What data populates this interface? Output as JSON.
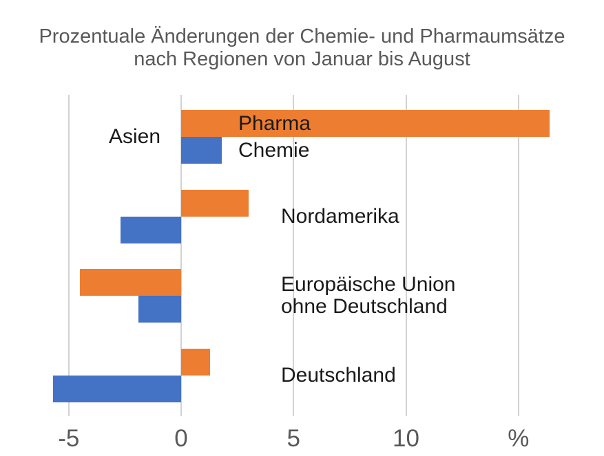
{
  "chart": {
    "title_lines": [
      "Prozentuale Änderungen der Chemie- und Pharmaumsätze",
      "nach Regionen von Januar bis August"
    ]
  },
  "chart_data": {
    "type": "bar",
    "orientation": "horizontal",
    "title": "Prozentuale Änderungen der Chemie- und Pharmaumsätze nach Regionen von Januar bis August",
    "xlabel": "",
    "ylabel": "",
    "unit": "%",
    "xlim": [
      -7,
      18
    ],
    "grid": "vertical",
    "legend_position": "inside-first-group",
    "categories": [
      "Asien",
      "Nordamerika",
      "Europäische Union\nohne Deutschland",
      "Deutschland"
    ],
    "series": [
      {
        "name": "Pharma",
        "color": "#ED7D31",
        "values": [
          16.4,
          3.0,
          -4.5,
          1.3
        ]
      },
      {
        "name": "Chemie",
        "color": "#4472C4",
        "values": [
          1.8,
          -2.7,
          -1.9,
          -5.7
        ]
      }
    ],
    "x_ticks": [
      {
        "value": -5,
        "label": "-5"
      },
      {
        "value": 0,
        "label": "0"
      },
      {
        "value": 5,
        "label": "5"
      },
      {
        "value": 10,
        "label": "10"
      },
      {
        "value": 15,
        "label": "%"
      }
    ],
    "colors": {
      "pharma": "#ED7D31",
      "chemie": "#4472C4",
      "gridline": "#d2d2d2",
      "axis_text": "#595959",
      "title_text": "#595959",
      "label_text": "#1a1a1a"
    }
  }
}
